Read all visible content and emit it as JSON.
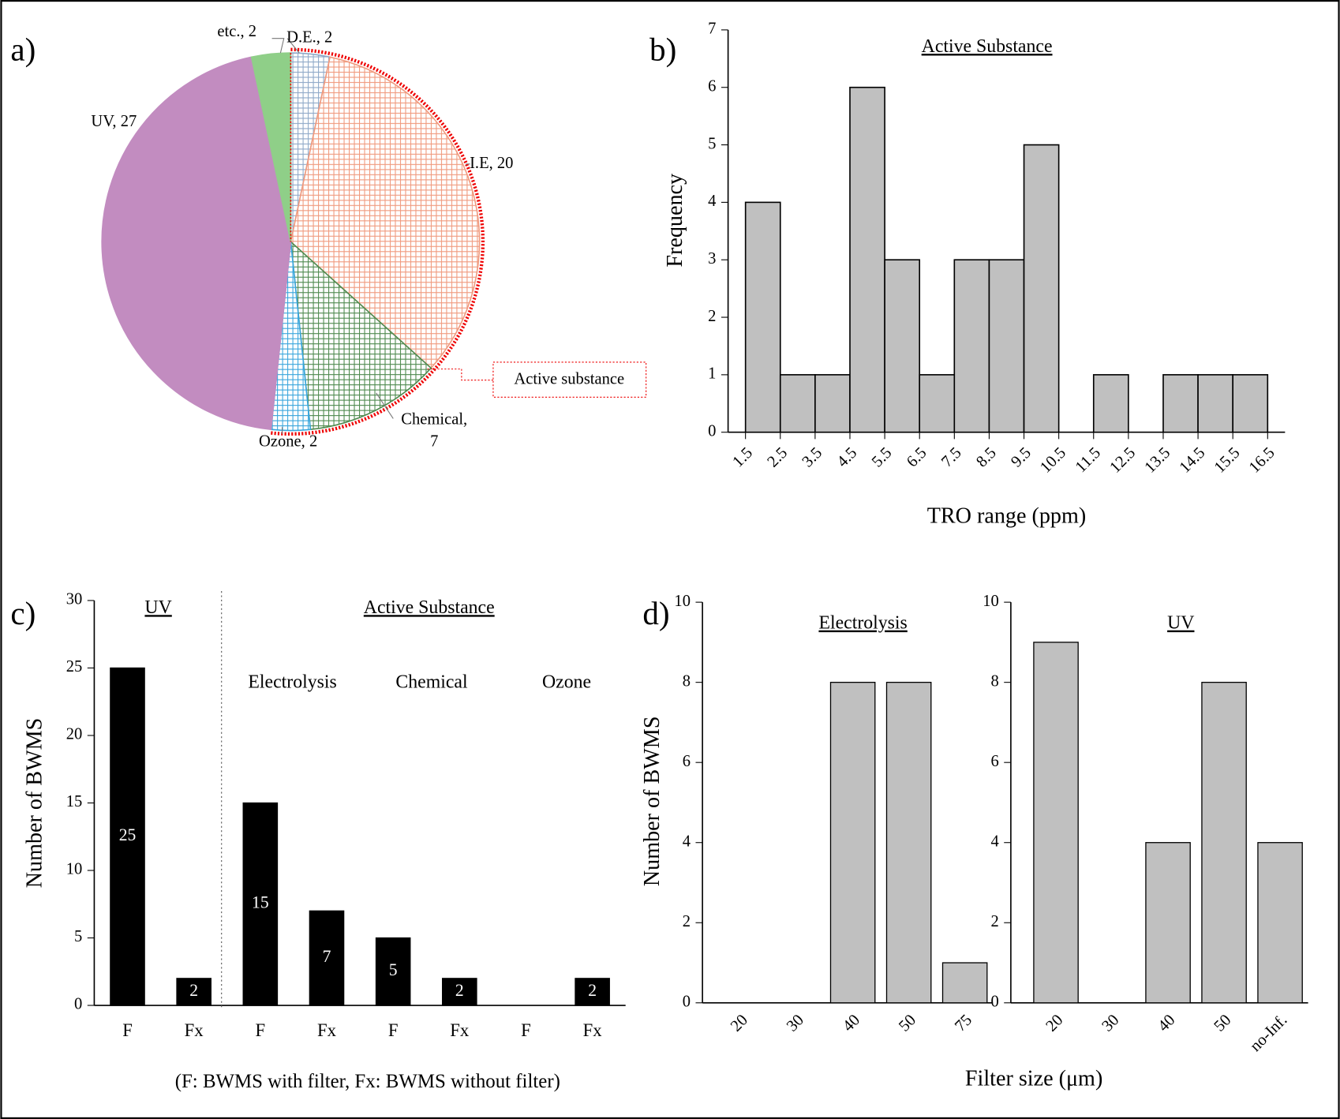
{
  "chart_data": [
    {
      "type": "pie",
      "panel_label": "a)",
      "categories": [
        "D.E.",
        "I.E",
        "Chemical",
        "Ozone",
        "UV",
        "etc."
      ],
      "values": [
        2,
        20,
        7,
        2,
        27,
        2
      ],
      "value_labels": [
        "D.E., 2",
        "I.E, 20",
        "Chemical,\n7",
        "Ozone, 2",
        "UV, 27",
        "etc., 2"
      ],
      "colors": [
        "#8fa9c8",
        "#f09a7e",
        "#4f8a4f",
        "#3aa6dc",
        "#c28cc0",
        "#8fcf88"
      ],
      "hatch": [
        true,
        true,
        true,
        true,
        false,
        false
      ],
      "annotation": "Active substance"
    },
    {
      "type": "histogram",
      "panel_label": "b)",
      "title": "Active Substance",
      "x_label": "TRO range (ppm)",
      "y_label": "Frequency",
      "bins": [
        1.5,
        2.5,
        3.5,
        4.5,
        5.5,
        6.5,
        7.5,
        8.5,
        9.5,
        10.5,
        11.5,
        12.5,
        13.5,
        14.5,
        15.5,
        16.5
      ],
      "counts": [
        4,
        1,
        1,
        6,
        3,
        1,
        3,
        3,
        5,
        0,
        1,
        0,
        1,
        1,
        1
      ],
      "xticks": [
        1.5,
        2.5,
        3.5,
        4.5,
        5.5,
        6.5,
        7.5,
        8.5,
        9.5,
        10.5,
        11.5,
        12.5,
        13.5,
        14.5,
        15.5,
        16.5
      ],
      "xlim": [
        1,
        17
      ],
      "ylim": [
        0,
        7
      ],
      "yticks": [
        0,
        1,
        2,
        3,
        4,
        5,
        6,
        7
      ],
      "color": "#c0c0c0"
    },
    {
      "type": "bar",
      "panel_label": "c)",
      "y_label": "Number of BWMS",
      "group_titles": [
        "UV",
        "Active Substance"
      ],
      "subgroup_titles": [
        "Electrolysis",
        "Chemical",
        "Ozone"
      ],
      "note": "(F: BWMS with filter, Fx: BWMS without filter)",
      "categories": [
        "F",
        "Fx",
        "F",
        "Fx",
        "F",
        "Fx",
        "F",
        "Fx"
      ],
      "values": [
        25,
        2,
        15,
        7,
        5,
        2,
        null,
        2
      ],
      "ylim": [
        0,
        30
      ],
      "yticks": [
        0,
        5,
        10,
        15,
        20,
        25,
        30
      ],
      "color": "#000000"
    },
    {
      "type": "bar",
      "panel_label": "d)",
      "title": "Electrolysis",
      "y_label": "Number of BWMS",
      "x_label": "Filter size (μm)",
      "categories": [
        "20",
        "30",
        "40",
        "50",
        "75"
      ],
      "values": [
        0,
        0,
        8,
        8,
        1
      ],
      "ylim": [
        0,
        10
      ],
      "yticks": [
        0,
        2,
        4,
        6,
        8,
        10
      ],
      "color": "#c0c0c0"
    },
    {
      "type": "bar",
      "title": "UV",
      "categories": [
        "20",
        "30",
        "40",
        "50",
        "no-Inf."
      ],
      "values": [
        9,
        0,
        4,
        8,
        4
      ],
      "ylim": [
        0,
        10
      ],
      "yticks": [
        0,
        2,
        4,
        6,
        8,
        10
      ],
      "color": "#c0c0c0"
    }
  ]
}
